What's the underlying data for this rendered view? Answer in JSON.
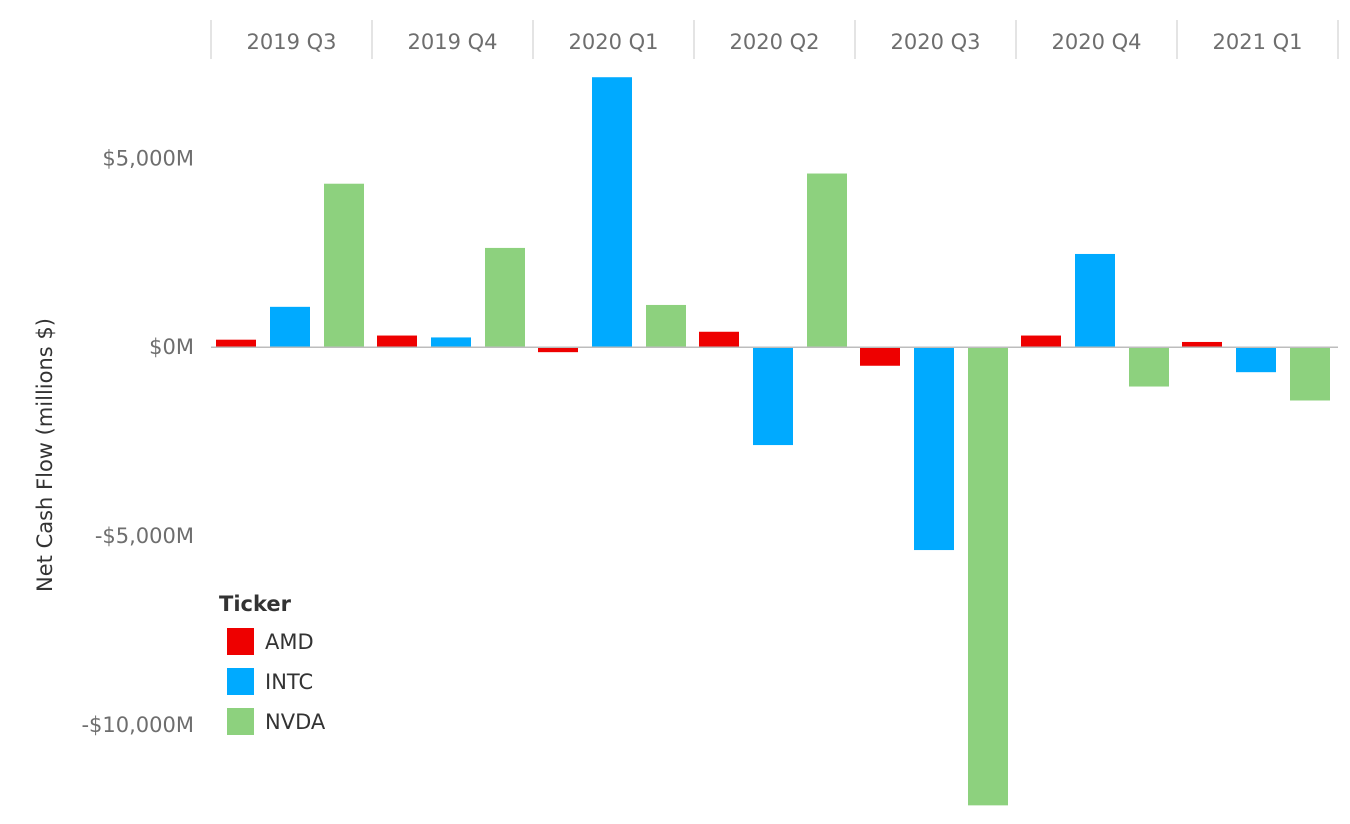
{
  "chart_data": {
    "type": "bar",
    "title": "",
    "xlabel": "",
    "ylabel": "Net Cash Flow (millions $)",
    "ylim": [
      -12200,
      7500
    ],
    "yticks": [
      5000,
      0,
      -5000,
      -10000
    ],
    "ytick_labels": [
      "$5,000M",
      "$0M",
      "-$5,000M",
      "-$10,000M"
    ],
    "categories": [
      "2019 Q3",
      "2019 Q4",
      "2020 Q1",
      "2020 Q2",
      "2020 Q3",
      "2020 Q4",
      "2021 Q1"
    ],
    "legend": {
      "title": "Ticker",
      "placement": "bottom-left"
    },
    "series": [
      {
        "name": "AMD",
        "color": "#ee0000",
        "values": [
          200,
          310,
          -130,
          410,
          -490,
          310,
          140
        ]
      },
      {
        "name": "INTC",
        "color": "#00aaff",
        "values": [
          1070,
          260,
          7150,
          -2590,
          -5370,
          2470,
          -660
        ]
      },
      {
        "name": "NVDA",
        "color": "#8dd17e",
        "values": [
          4330,
          2630,
          1120,
          4600,
          -12130,
          -1040,
          -1410
        ]
      }
    ],
    "grid": false
  }
}
